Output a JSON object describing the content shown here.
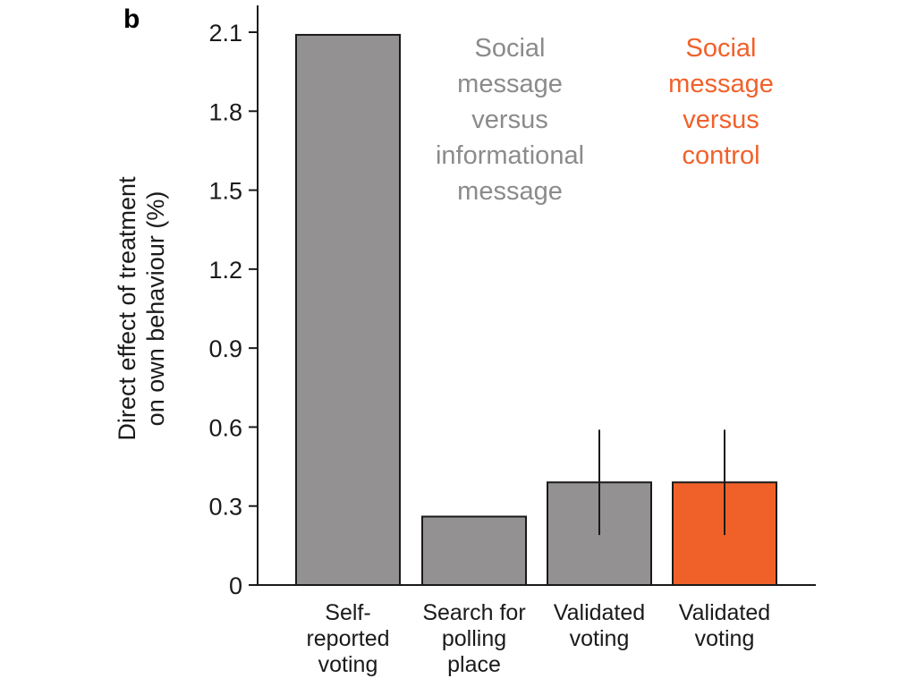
{
  "panel_label": "b",
  "colors": {
    "gray_bar": "#939192",
    "orange_bar": "#f0612a",
    "gray_text": "#8c8a8b",
    "orange_text": "#f0612a",
    "axis": "#1a1a1a"
  },
  "group_labels": [
    {
      "lines": [
        "Social",
        "message",
        "versus",
        "informational",
        "message"
      ],
      "color": "#8c8a8b"
    },
    {
      "lines": [
        "Social",
        "message",
        "versus",
        "control"
      ],
      "color": "#f0612a"
    }
  ],
  "chart_data": {
    "type": "bar",
    "ylabel_lines": [
      "Direct effect of treatment",
      "on own behaviour (%)"
    ],
    "xlabel": "",
    "ylim": [
      0,
      2.1
    ],
    "yticks": [
      "0",
      "0.3",
      "0.6",
      "0.9",
      "1.2",
      "1.5",
      "1.8",
      "2.1"
    ],
    "grid": false,
    "bars": [
      {
        "category_lines": [
          "Self-",
          "reported",
          "voting"
        ],
        "value": 2.09,
        "color": "#939192",
        "error": null
      },
      {
        "category_lines": [
          "Search for",
          "polling",
          "place"
        ],
        "value": 0.26,
        "color": "#939192",
        "error": null
      },
      {
        "category_lines": [
          "Validated",
          "voting"
        ],
        "value": 0.39,
        "color": "#939192",
        "error": [
          0.19,
          0.59
        ]
      },
      {
        "category_lines": [
          "Validated",
          "voting"
        ],
        "value": 0.39,
        "color": "#f0612a",
        "error": [
          0.19,
          0.59
        ]
      }
    ]
  }
}
